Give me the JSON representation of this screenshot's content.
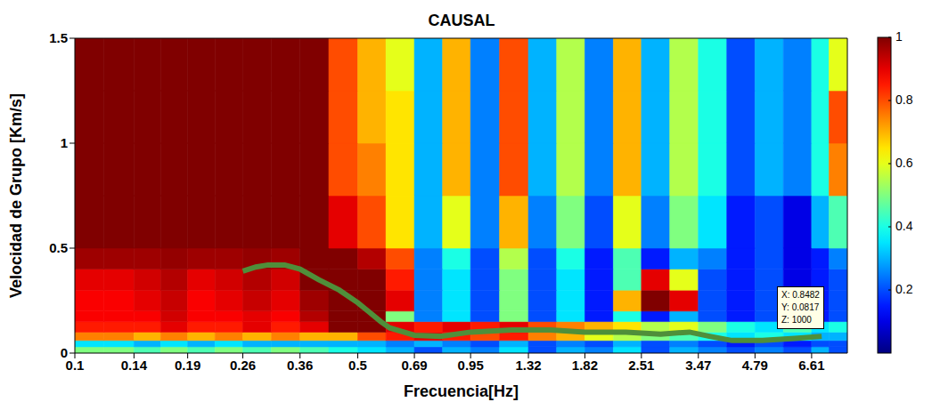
{
  "chart_data": {
    "type": "heatmap",
    "title": "CAUSAL",
    "x_label": "Frecuencia[Hz]",
    "y_label": "Velocidad de Grupo [Km/s]",
    "log": "x",
    "xlim": [
      0.1,
      8.1
    ],
    "xticks": [
      0.1,
      0.14,
      0.19,
      0.26,
      0.36,
      0.5,
      0.69,
      0.95,
      1.32,
      1.82,
      2.51,
      3.47,
      4.79,
      6.61
    ],
    "ylim": [
      0,
      1.5
    ],
    "yticks": [
      0,
      0.5,
      1,
      1.5
    ],
    "cells": {
      "x_edges": [
        0.1,
        0.118,
        0.14,
        0.163,
        0.19,
        0.222,
        0.26,
        0.306,
        0.36,
        0.424,
        0.5,
        0.587,
        0.69,
        0.81,
        0.95,
        1.12,
        1.32,
        1.55,
        1.82,
        2.14,
        2.51,
        2.95,
        3.47,
        4.08,
        4.79,
        5.63,
        6.61,
        7.3,
        8.1
      ],
      "y_edges": [
        0,
        0.03,
        0.06,
        0.1,
        0.15,
        0.2,
        0.3,
        0.4,
        0.5,
        0.75,
        1.0,
        1.25,
        1.5
      ],
      "z": [
        [
          0.5,
          0.5,
          0.45,
          0.5,
          0.45,
          0.5,
          0.45,
          0.5,
          0.45,
          0.4,
          0.35,
          0.3,
          0.2,
          0.3,
          0.25,
          0.35,
          0.2,
          0.3,
          0.25,
          0.35,
          0.2,
          0.3,
          0.25,
          0.2,
          0.25,
          0.2,
          0.3,
          0.2
        ],
        [
          0.35,
          0.35,
          0.3,
          0.35,
          0.3,
          0.35,
          0.3,
          0.3,
          0.3,
          0.3,
          0.3,
          0.25,
          0.3,
          0.25,
          0.2,
          0.3,
          0.2,
          0.25,
          0.2,
          0.3,
          0.2,
          0.25,
          0.2,
          0.15,
          0.2,
          0.15,
          0.2,
          0.2
        ],
        [
          0.75,
          0.75,
          0.7,
          0.75,
          0.7,
          0.75,
          0.7,
          0.75,
          0.7,
          0.7,
          0.8,
          0.85,
          0.9,
          0.85,
          0.8,
          0.85,
          0.75,
          0.7,
          0.6,
          0.55,
          0.5,
          0.45,
          0.4,
          0.35,
          0.4,
          0.35,
          0.3,
          0.3
        ],
        [
          0.85,
          0.85,
          0.85,
          0.9,
          0.85,
          0.85,
          0.9,
          0.85,
          0.9,
          1,
          1,
          0.9,
          0.85,
          0.9,
          0.85,
          0.9,
          0.8,
          0.75,
          0.7,
          0.65,
          0.55,
          0.6,
          0.5,
          0.4,
          0.35,
          0.45,
          0.35,
          0.4
        ],
        [
          0.88,
          0.88,
          0.88,
          0.92,
          0.88,
          0.88,
          0.9,
          0.88,
          0.95,
          1,
          1,
          0.5,
          0.25,
          0.35,
          0.2,
          0.5,
          0.2,
          0.35,
          0.15,
          0.4,
          0.15,
          0.3,
          0.2,
          0.15,
          0.2,
          0.1,
          0.15,
          0.2
        ],
        [
          0.88,
          0.88,
          0.9,
          0.93,
          0.88,
          0.9,
          0.93,
          0.9,
          0.97,
          1,
          1,
          0.9,
          0.25,
          0.35,
          0.2,
          0.5,
          0.2,
          0.35,
          0.15,
          0.7,
          1,
          0.9,
          0.2,
          0.15,
          0.2,
          0.1,
          0.15,
          0.2
        ],
        [
          0.9,
          0.9,
          0.92,
          0.95,
          0.9,
          0.92,
          0.95,
          0.92,
          1,
          1,
          1,
          0.85,
          0.25,
          0.35,
          0.2,
          0.5,
          0.2,
          0.35,
          0.15,
          0.45,
          0.9,
          0.6,
          0.2,
          0.15,
          0.2,
          0.1,
          0.15,
          0.2
        ],
        [
          0.97,
          0.97,
          0.97,
          0.98,
          0.97,
          0.97,
          0.98,
          0.97,
          1,
          1,
          0.95,
          0.8,
          0.25,
          0.4,
          0.2,
          0.55,
          0.2,
          0.4,
          0.15,
          0.45,
          0.15,
          0.3,
          0.25,
          0.15,
          0.2,
          0.1,
          0.15,
          0.25
        ],
        [
          1,
          1,
          1,
          1,
          1,
          1,
          1,
          1,
          1,
          0.9,
          0.8,
          0.65,
          0.3,
          0.6,
          0.25,
          0.7,
          0.25,
          0.5,
          0.2,
          0.6,
          0.25,
          0.5,
          0.35,
          0.15,
          0.2,
          0.1,
          0.3,
          0.45
        ],
        [
          1,
          1,
          1,
          1,
          1,
          1,
          1,
          1,
          1,
          0.8,
          0.75,
          0.65,
          0.3,
          0.7,
          0.25,
          0.8,
          0.3,
          0.55,
          0.25,
          0.7,
          0.3,
          0.55,
          0.4,
          0.2,
          0.3,
          0.25,
          0.4,
          0.75
        ],
        [
          1,
          1,
          1,
          1,
          1,
          1,
          1,
          1,
          1,
          0.8,
          0.7,
          0.65,
          0.3,
          0.7,
          0.25,
          0.8,
          0.3,
          0.55,
          0.25,
          0.7,
          0.3,
          0.55,
          0.4,
          0.2,
          0.3,
          0.25,
          0.4,
          0.8
        ],
        [
          1,
          1,
          1,
          1,
          1,
          1,
          1,
          1,
          1,
          0.8,
          0.7,
          0.6,
          0.3,
          0.7,
          0.25,
          0.8,
          0.3,
          0.55,
          0.25,
          0.7,
          0.3,
          0.55,
          0.4,
          0.2,
          0.3,
          0.25,
          0.4,
          0.6
        ]
      ]
    },
    "colorbar": {
      "range": [
        0,
        1
      ],
      "ticks": [
        0.2,
        0.4,
        0.6,
        0.8,
        1
      ]
    },
    "series": [
      {
        "type": "line",
        "color": "#4f8f3a",
        "x": [
          0.26,
          0.28,
          0.3,
          0.33,
          0.36,
          0.4,
          0.45,
          0.5,
          0.53,
          0.57,
          0.6,
          0.65,
          0.69,
          0.8,
          0.95,
          1.2,
          1.5,
          1.82,
          2.3,
          2.8,
          3.3,
          3.7,
          4.2,
          5.0,
          6.0,
          7.0
        ],
        "values": [
          0.39,
          0.41,
          0.42,
          0.42,
          0.4,
          0.35,
          0.3,
          0.24,
          0.2,
          0.15,
          0.12,
          0.1,
          0.085,
          0.08,
          0.1,
          0.11,
          0.11,
          0.1,
          0.1,
          0.09,
          0.1,
          0.08,
          0.06,
          0.06,
          0.07,
          0.08
        ]
      }
    ],
    "annotations": [
      "X: 0.8482",
      "Y: 0.0817",
      "Z: 1000"
    ]
  }
}
